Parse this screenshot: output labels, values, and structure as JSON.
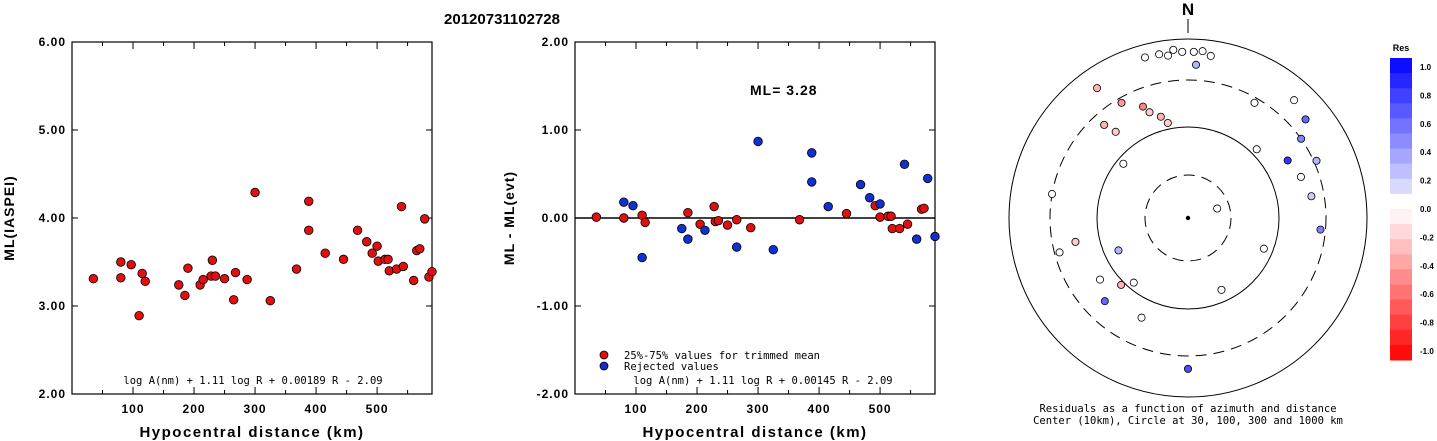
{
  "figure_title": "20120731102728",
  "colors": {
    "accepted": "#e01010",
    "rejected": "#1030d0",
    "frame": "#000000"
  },
  "chart_data": [
    {
      "type": "scatter",
      "id": "ml_vs_distance",
      "xlabel": "Hypocentral distance (km)",
      "ylabel": "ML(IASPEI)",
      "xlim": [
        0,
        590
      ],
      "ylim": [
        2.0,
        6.0
      ],
      "xticks": [
        100,
        200,
        300,
        400,
        500
      ],
      "yticks": [
        "2.00",
        "3.00",
        "4.00",
        "5.00",
        "6.00"
      ],
      "formula": "log A(nm) + 1.11 log R + 0.00189 R - 2.09",
      "points": [
        [
          35,
          3.31
        ],
        [
          80,
          3.5
        ],
        [
          80,
          3.32
        ],
        [
          97,
          3.47
        ],
        [
          110,
          2.89
        ],
        [
          115,
          3.37
        ],
        [
          120,
          3.28
        ],
        [
          175,
          3.24
        ],
        [
          185,
          3.12
        ],
        [
          190,
          3.43
        ],
        [
          210,
          3.24
        ],
        [
          215,
          3.3
        ],
        [
          228,
          3.34
        ],
        [
          230,
          3.52
        ],
        [
          235,
          3.34
        ],
        [
          250,
          3.31
        ],
        [
          265,
          3.07
        ],
        [
          268,
          3.38
        ],
        [
          287,
          3.3
        ],
        [
          300,
          4.29
        ],
        [
          325,
          3.06
        ],
        [
          368,
          3.42
        ],
        [
          388,
          3.86
        ],
        [
          388,
          4.19
        ],
        [
          415,
          3.6
        ],
        [
          445,
          3.53
        ],
        [
          468,
          3.86
        ],
        [
          483,
          3.73
        ],
        [
          492,
          3.6
        ],
        [
          500,
          3.68
        ],
        [
          502,
          3.51
        ],
        [
          513,
          3.53
        ],
        [
          518,
          3.53
        ],
        [
          520,
          3.4
        ],
        [
          532,
          3.42
        ],
        [
          540,
          4.13
        ],
        [
          543,
          3.45
        ],
        [
          560,
          3.29
        ],
        [
          565,
          3.63
        ],
        [
          570,
          3.65
        ],
        [
          578,
          3.99
        ],
        [
          585,
          3.33
        ],
        [
          592,
          3.39
        ]
      ]
    },
    {
      "type": "scatter",
      "id": "residual_vs_distance",
      "xlabel": "Hypocentral distance (km)",
      "ylabel": "ML - ML(evt)",
      "xlim": [
        0,
        590
      ],
      "ylim": [
        -2.0,
        2.0
      ],
      "xticks": [
        100,
        200,
        300,
        400,
        500
      ],
      "yticks": [
        "-2.00",
        "-1.00",
        "0.00",
        "1.00",
        "2.00"
      ],
      "annotation": "ML= 3.28",
      "formula": "log A(nm) + 1.11 log R + 0.00145 R - 2.09",
      "legend": [
        {
          "label": "25%-75% values for trimmed mean",
          "series": "accepted"
        },
        {
          "label": "Rejected values",
          "series": "rejected"
        }
      ],
      "accepted": [
        [
          35,
          0.01
        ],
        [
          80,
          0.0
        ],
        [
          110,
          0.03
        ],
        [
          115,
          -0.05
        ],
        [
          185,
          0.06
        ],
        [
          205,
          -0.07
        ],
        [
          228,
          0.13
        ],
        [
          230,
          -0.04
        ],
        [
          235,
          -0.03
        ],
        [
          250,
          -0.08
        ],
        [
          265,
          -0.02
        ],
        [
          288,
          -0.11
        ],
        [
          368,
          -0.02
        ],
        [
          445,
          0.05
        ],
        [
          492,
          0.14
        ],
        [
          500,
          0.01
        ],
        [
          513,
          0.02
        ],
        [
          518,
          0.02
        ],
        [
          520,
          -0.12
        ],
        [
          532,
          -0.12
        ],
        [
          545,
          -0.07
        ],
        [
          568,
          0.1
        ],
        [
          572,
          0.11
        ]
      ],
      "rejected": [
        [
          80,
          0.18
        ],
        [
          95,
          0.14
        ],
        [
          110,
          -0.45
        ],
        [
          175,
          -0.12
        ],
        [
          185,
          -0.24
        ],
        [
          213,
          -0.14
        ],
        [
          265,
          -0.33
        ],
        [
          300,
          0.87
        ],
        [
          325,
          -0.36
        ],
        [
          388,
          0.74
        ],
        [
          388,
          0.41
        ],
        [
          415,
          0.13
        ],
        [
          468,
          0.38
        ],
        [
          483,
          0.23
        ],
        [
          500,
          0.16
        ],
        [
          540,
          0.61
        ],
        [
          560,
          -0.24
        ],
        [
          578,
          0.45
        ],
        [
          592,
          -0.21
        ]
      ]
    },
    {
      "type": "polar",
      "id": "azimuth_residuals",
      "north_label": "N",
      "caption": [
        "Residuals as a function of azimuth and distance",
        "Center (10km), Circle at 30, 100, 300 and 1000 km"
      ],
      "stations": [
        [
          345,
          650,
          0.0
        ],
        [
          350,
          650,
          0.0
        ],
        [
          353,
          640,
          0.0
        ],
        [
          355,
          660,
          0.0
        ],
        [
          358,
          650,
          0.0
        ],
        [
          2,
          650,
          0.0
        ],
        [
          5,
          655,
          0.0
        ],
        [
          8,
          640,
          0.0
        ],
        [
          3,
          600,
          0.3
        ],
        [
          330,
          520,
          -0.4
        ],
        [
          338,
          470,
          -0.5
        ],
        [
          340,
          440,
          -0.2
        ],
        [
          345,
          410,
          -0.3
        ],
        [
          348,
          380,
          -0.2
        ],
        [
          325,
          620,
          -0.3
        ],
        [
          320,
          440,
          -0.2
        ],
        [
          310,
          330,
          0.0
        ],
        [
          318,
          490,
          -0.3
        ],
        [
          30,
          520,
          0.0
        ],
        [
          42,
          620,
          0.0
        ],
        [
          50,
          600,
          0.6
        ],
        [
          55,
          540,
          0.5
        ],
        [
          60,
          450,
          0.8
        ],
        [
          66,
          550,
          0.3
        ],
        [
          70,
          470,
          0.0
        ],
        [
          80,
          490,
          0.2
        ],
        [
          95,
          520,
          0.5
        ],
        [
          112,
          320,
          0.0
        ],
        [
          45,
          380,
          0.0
        ],
        [
          72,
          120,
          0.0
        ],
        [
          155,
          310,
          0.0
        ],
        [
          280,
          540,
          0.0
        ],
        [
          255,
          520,
          0.0
        ],
        [
          258,
          450,
          -0.2
        ],
        [
          245,
          300,
          0.3
        ],
        [
          225,
          460,
          0.6
        ],
        [
          235,
          420,
          0.0
        ],
        [
          225,
          370,
          -0.3
        ],
        [
          220,
          330,
          0.0
        ],
        [
          205,
          430,
          0.0
        ],
        [
          180,
          590,
          0.7
        ]
      ]
    }
  ],
  "colorbar": {
    "title": "Res",
    "labels": [
      "1.0",
      "0.8",
      "0.6",
      "0.4",
      "0.2",
      "0.0",
      "-0.2",
      "-0.4",
      "-0.6",
      "-0.8",
      "-1.0"
    ]
  }
}
